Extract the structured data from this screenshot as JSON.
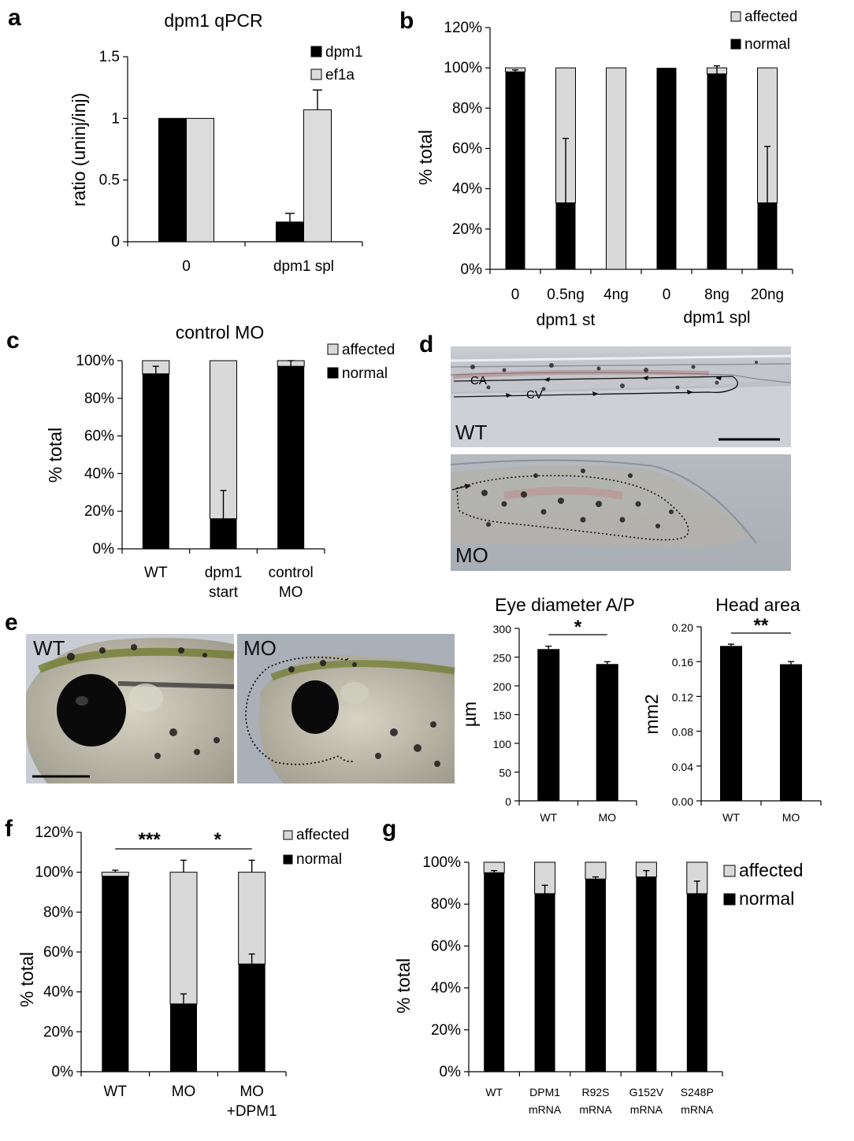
{
  "panels": {
    "a": "a",
    "b": "b",
    "c": "c",
    "d": "d",
    "e": "e",
    "f": "f",
    "g": "g"
  },
  "colors": {
    "normal": "#000000",
    "affected": "#d9d9d9",
    "ef1a": "#dcdcdc"
  },
  "chart_data": [
    {
      "id": "a",
      "type": "bar",
      "title": "dpm1 qPCR",
      "ylabel": "ratio (uninj/inj)",
      "categories": [
        "0",
        "dpm1 spl"
      ],
      "series": [
        {
          "name": "dpm1",
          "values": [
            1.0,
            0.16
          ],
          "errors": [
            null,
            0.07
          ],
          "color": "#000000"
        },
        {
          "name": "ef1a",
          "values": [
            1.0,
            1.07
          ],
          "errors": [
            null,
            0.16
          ],
          "color": "#dcdcdc"
        }
      ],
      "ylim": [
        0,
        1.5
      ],
      "yticks": [
        "0",
        "0.5",
        "1",
        "1.5"
      ],
      "legend": "top-right"
    },
    {
      "id": "b",
      "type": "bar",
      "stacked": true,
      "ylabel": "% total",
      "categories": [
        "0",
        "0.5ng",
        "4ng",
        "0",
        "8ng",
        "20ng"
      ],
      "groups": [
        "dpm1 st",
        "dpm1 spl"
      ],
      "series": [
        {
          "name": "affected",
          "values": [
            2,
            67,
            100,
            0,
            3,
            67
          ],
          "color": "#d9d9d9"
        },
        {
          "name": "normal",
          "values": [
            98,
            33,
            0,
            100,
            97,
            33
          ],
          "errors": [
            1,
            32,
            null,
            null,
            4,
            28
          ],
          "color": "#000000"
        }
      ],
      "ylim": [
        0,
        120
      ],
      "yticks": [
        "0%",
        "20%",
        "40%",
        "60%",
        "80%",
        "100%",
        "120%"
      ],
      "legend": "top-right"
    },
    {
      "id": "c",
      "type": "bar",
      "stacked": true,
      "title": "control MO",
      "ylabel": "% total",
      "categories": [
        "WT",
        "dpm1 start",
        "control MO"
      ],
      "series": [
        {
          "name": "affected",
          "values": [
            7,
            84,
            3
          ],
          "color": "#d9d9d9"
        },
        {
          "name": "normal",
          "values": [
            93,
            16,
            97
          ],
          "errors": [
            4,
            15,
            3
          ],
          "color": "#000000"
        }
      ],
      "ylim": [
        0,
        100
      ],
      "yticks": [
        "0%",
        "20%",
        "40%",
        "60%",
        "80%",
        "100%"
      ],
      "legend": "top-right"
    },
    {
      "id": "e1",
      "type": "bar",
      "title": "Eye diameter A/P",
      "ylabel": "µm",
      "categories": [
        "WT",
        "MO"
      ],
      "values": [
        264,
        238
      ],
      "errors": [
        5,
        4
      ],
      "ylim": [
        0,
        300
      ],
      "yticks": [
        "0",
        "50",
        "100",
        "150",
        "200",
        "250",
        "300"
      ],
      "significance": "*"
    },
    {
      "id": "e2",
      "type": "bar",
      "title": "Head area",
      "ylabel": "mm2",
      "categories": [
        "WT",
        "MO"
      ],
      "values": [
        0.178,
        0.157
      ],
      "errors": [
        0.002,
        0.003
      ],
      "ylim": [
        0,
        0.2
      ],
      "yticks": [
        "0.00",
        "0.04",
        "0.08",
        "0.12",
        "0.16",
        "0.20"
      ],
      "significance": "**"
    },
    {
      "id": "f",
      "type": "bar",
      "stacked": true,
      "ylabel": "% total",
      "categories": [
        "WT",
        "MO",
        "MO +DPM1"
      ],
      "series": [
        {
          "name": "affected",
          "values": [
            2,
            66,
            46
          ],
          "errors": [
            1,
            6,
            6
          ],
          "color": "#d9d9d9"
        },
        {
          "name": "normal",
          "values": [
            98,
            34,
            54
          ],
          "errors": [
            null,
            5,
            5
          ],
          "color": "#000000"
        }
      ],
      "ylim": [
        0,
        120
      ],
      "yticks": [
        "0%",
        "20%",
        "40%",
        "60%",
        "80%",
        "100%",
        "120%"
      ],
      "significance": [
        "***",
        "*"
      ],
      "legend": "top-right"
    },
    {
      "id": "g",
      "type": "bar",
      "stacked": true,
      "ylabel": "% total",
      "categories": [
        "WT",
        "DPM1 mRNA",
        "R92S mRNA",
        "G152V mRNA",
        "S248P mRNA"
      ],
      "series": [
        {
          "name": "affected",
          "values": [
            5,
            15,
            8,
            7,
            15
          ],
          "color": "#d9d9d9"
        },
        {
          "name": "normal",
          "values": [
            95,
            85,
            92,
            93,
            85
          ],
          "errors": [
            1,
            4,
            1,
            3,
            6
          ],
          "color": "#000000"
        }
      ],
      "ylim": [
        0,
        100
      ],
      "yticks": [
        "0%",
        "20%",
        "40%",
        "60%",
        "80%",
        "100%"
      ],
      "legend": "top-right"
    }
  ],
  "images": {
    "d_top": {
      "label": "WT",
      "annotations": [
        "CA",
        "CV"
      ]
    },
    "d_bottom": {
      "label": "MO"
    },
    "e_left": {
      "label": "WT"
    },
    "e_right": {
      "label": "MO"
    }
  }
}
